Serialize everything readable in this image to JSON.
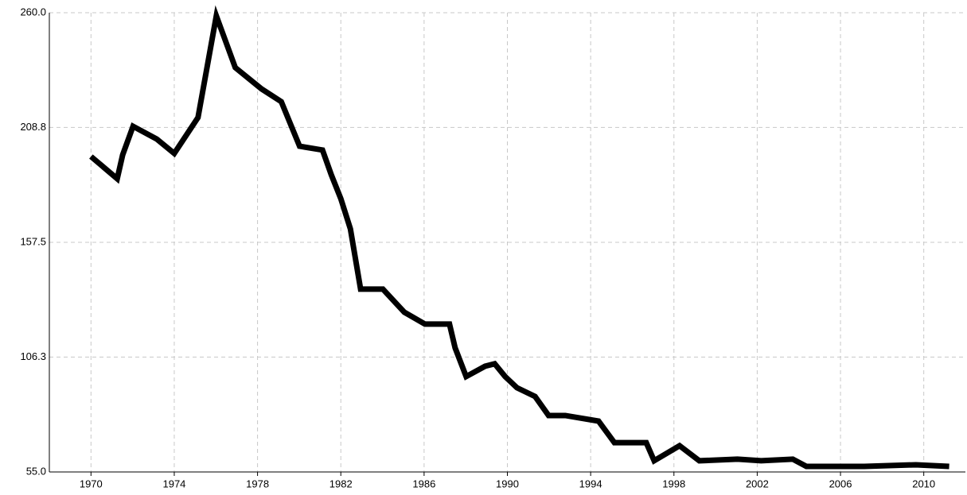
{
  "chart_data": {
    "type": "line",
    "x": [
      1970,
      1971.26,
      1971.52,
      1972.02,
      1973.16,
      1974,
      1975.14,
      1976.02,
      1976.93,
      1978.19,
      1979.14,
      1980.02,
      1981.12,
      1981.54,
      1982,
      1982.46,
      1982.95,
      1984.02,
      1985.05,
      1986.04,
      1987.22,
      1987.49,
      1988.02,
      1988.93,
      1989.39,
      1989.89,
      1990.46,
      1991.33,
      1991.98,
      1992.78,
      1994.38,
      1995.14,
      1996.67,
      1997.05,
      1998.27,
      1999.22,
      2001.05,
      2002.19,
      2003.71,
      2004.36,
      2007.14,
      2009.62,
      2011.22
    ],
    "series": [
      {
        "color": "#000000",
        "values": [
          195.8,
          185.9,
          196.5,
          209.3,
          203.6,
          197.2,
          213.2,
          258.6,
          235.5,
          226.0,
          220.3,
          200.4,
          198.7,
          187.7,
          177.0,
          163.5,
          136.6,
          136.6,
          126.3,
          121.0,
          121.0,
          110.4,
          97.6,
          102.2,
          103.3,
          97.6,
          92.6,
          88.7,
          80.2,
          80.2,
          77.7,
          68.1,
          68.1,
          60.0,
          66.7,
          60.0,
          60.7,
          60.0,
          60.7,
          57.5,
          57.5,
          58.2,
          57.5
        ]
      }
    ],
    "xlim": [
      1968,
      2012
    ],
    "xticks": [
      1970,
      1974,
      1978,
      1982,
      1986,
      1990,
      1994,
      1998,
      2002,
      2006,
      2010
    ],
    "ylim": [
      55,
      260
    ],
    "yticks": [
      {
        "value": 55,
        "label": "55.0"
      },
      106.3,
      157.5,
      208.8,
      {
        "value": 260,
        "label": "260.0"
      }
    ],
    "grid": true
  }
}
